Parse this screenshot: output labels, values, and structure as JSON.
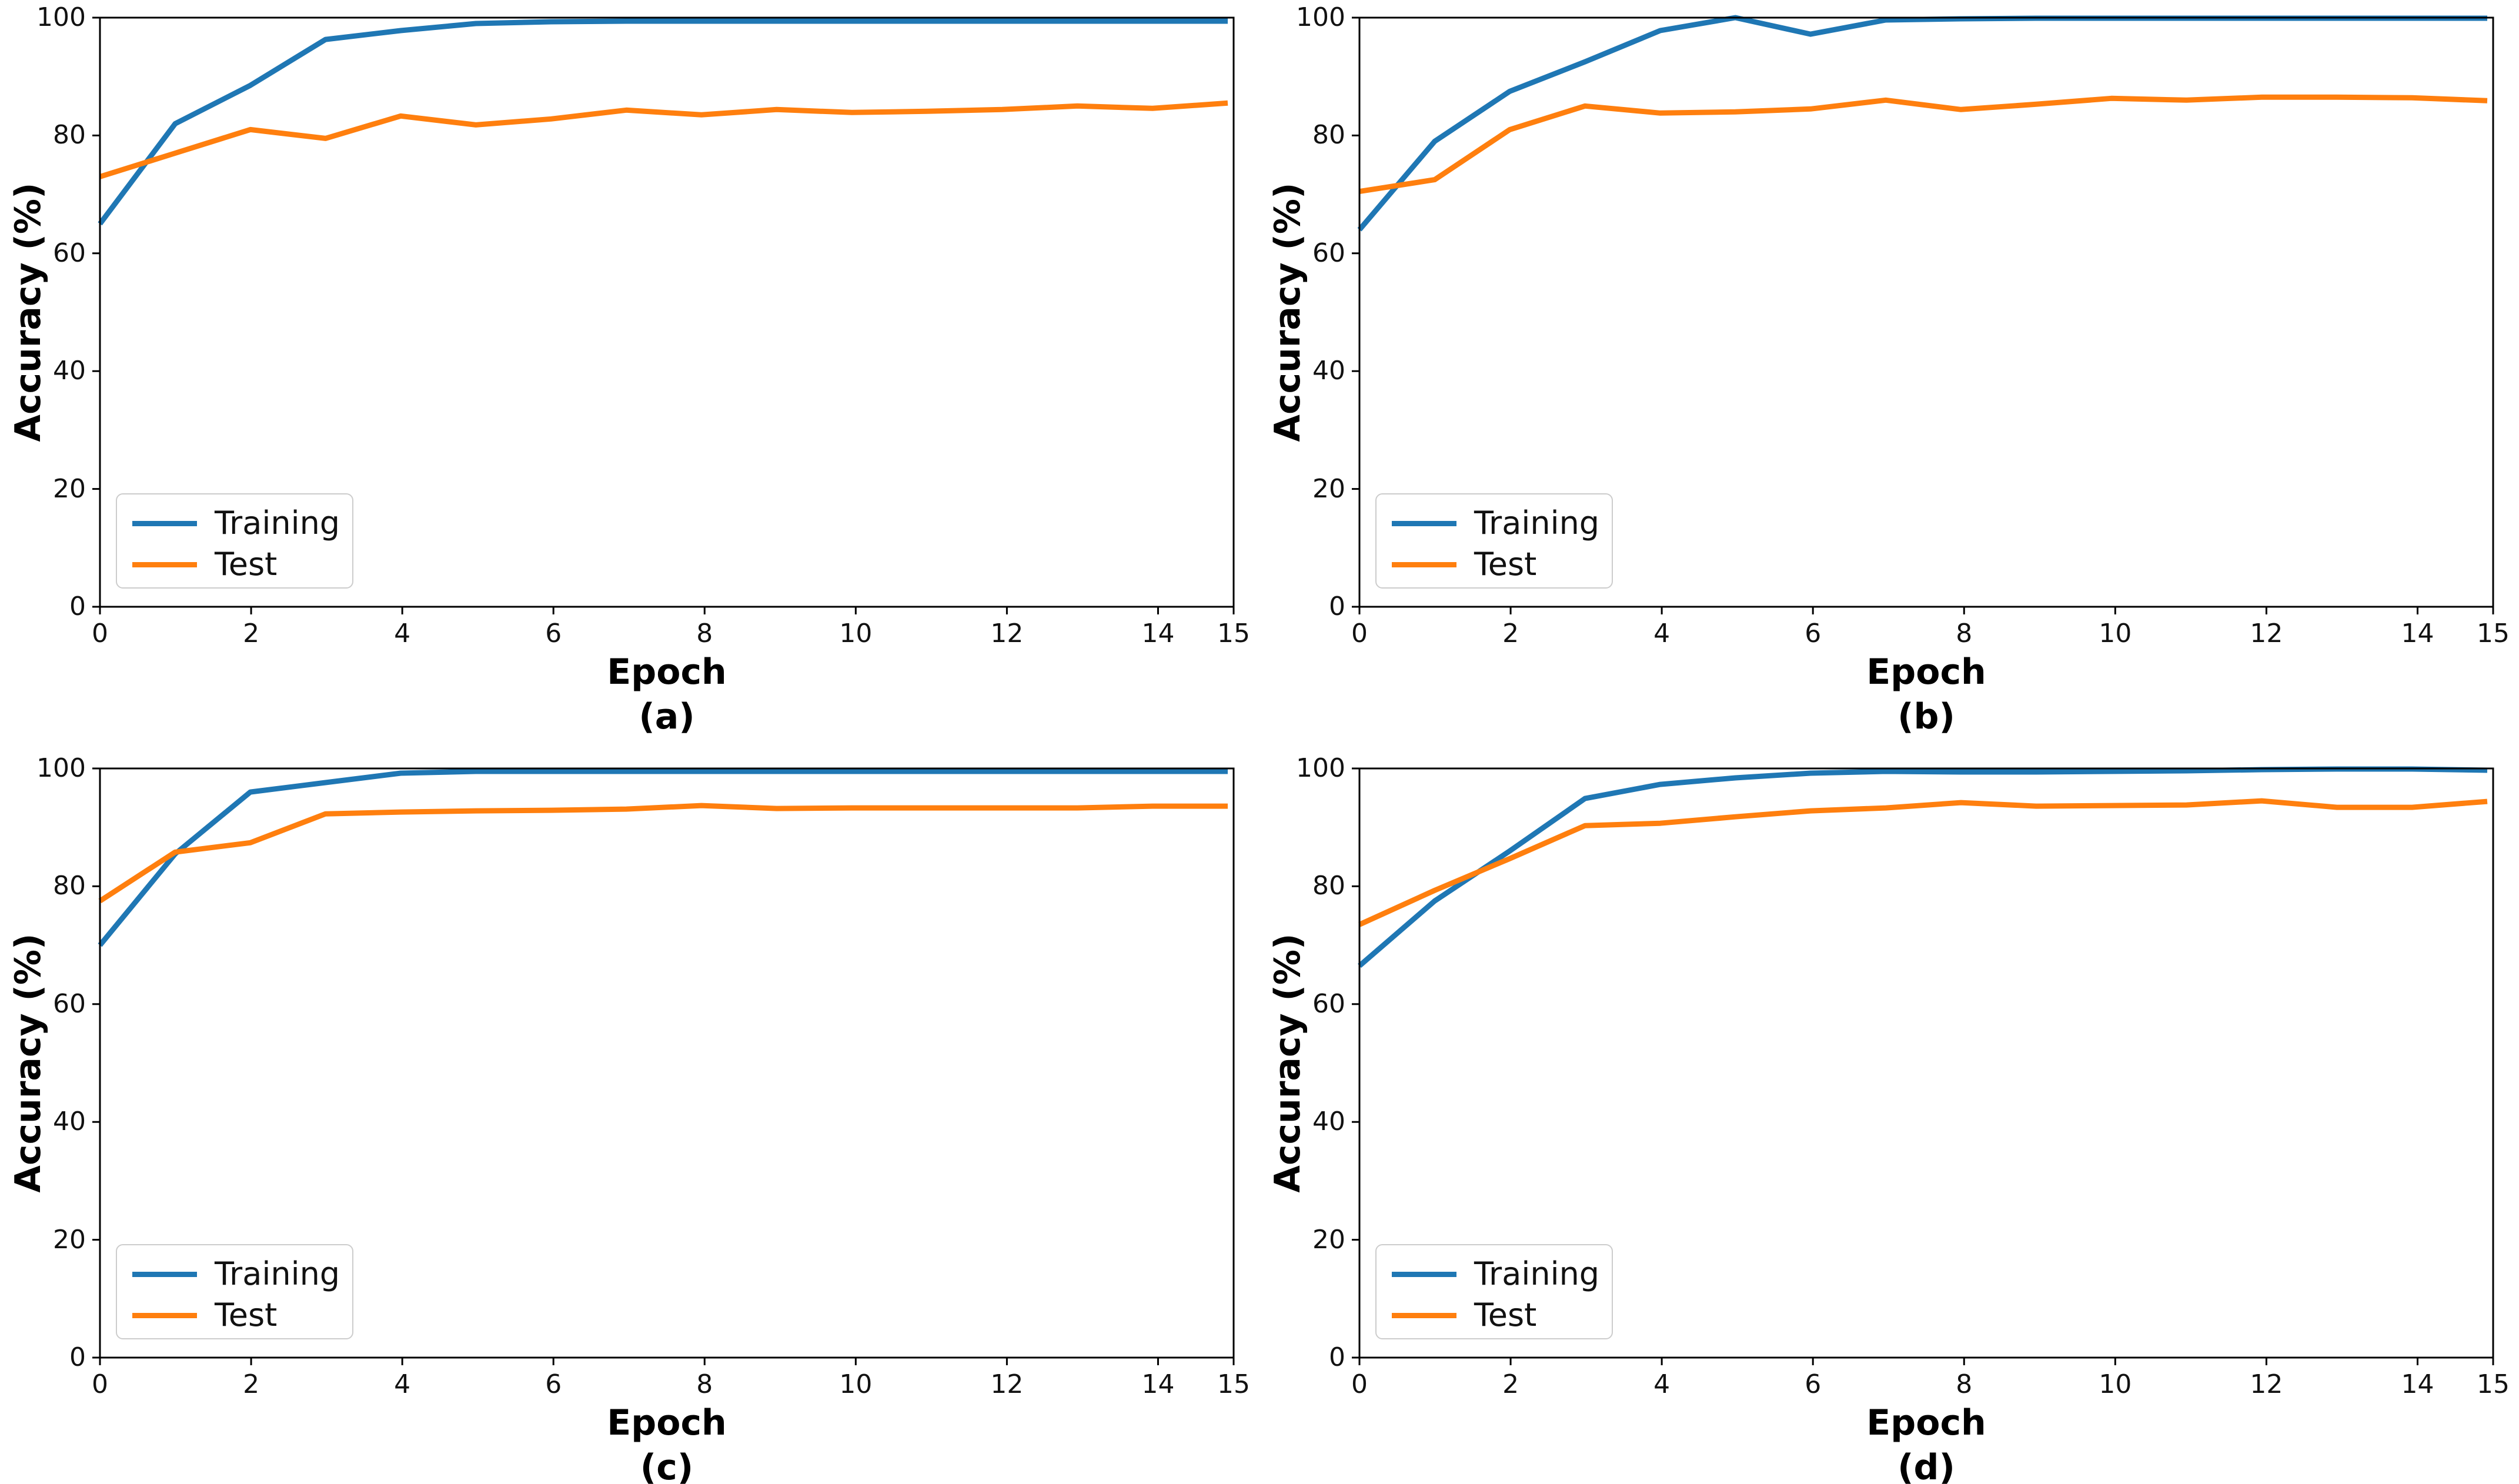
{
  "figure": {
    "background": "#ffffff",
    "rows": 2,
    "cols": 2,
    "spine_color": "#000000",
    "tick_color": "#000000"
  },
  "chart_data": [
    {
      "type": "line",
      "panel_label": "(a)",
      "xlabel": "Epoch",
      "ylabel": "Accuracy (%)",
      "xlim": [
        0,
        15
      ],
      "ylim": [
        0,
        100
      ],
      "xticks": [
        0,
        2,
        4,
        6,
        8,
        10,
        12,
        14,
        15
      ],
      "yticks": [
        0,
        20,
        40,
        60,
        80,
        100
      ],
      "grid": false,
      "legend": {
        "position": "lower-left",
        "entries": [
          "Training",
          "Test"
        ]
      },
      "x": [
        0,
        1,
        2,
        3,
        4,
        5,
        6,
        7,
        8,
        9,
        10,
        11,
        12,
        13,
        14,
        15
      ],
      "series": [
        {
          "name": "Training",
          "color": "#1f77b4",
          "values": [
            65,
            82,
            88.5,
            96.3,
            97.8,
            99.0,
            99.3,
            99.4,
            99.4,
            99.4,
            99.4,
            99.4,
            99.4,
            99.4,
            99.4,
            99.4
          ]
        },
        {
          "name": "Test",
          "color": "#ff7f0e",
          "values": [
            73,
            77,
            81,
            79.5,
            83.3,
            81.8,
            82.8,
            84.3,
            83.5,
            84.4,
            83.9,
            84.1,
            84.4,
            85.0,
            84.6,
            85.5
          ]
        }
      ]
    },
    {
      "type": "line",
      "panel_label": "(b)",
      "xlabel": "Epoch",
      "ylabel": "Accuracy (%)",
      "xlim": [
        0,
        15
      ],
      "ylim": [
        0,
        100
      ],
      "xticks": [
        0,
        2,
        4,
        6,
        8,
        10,
        12,
        14,
        15
      ],
      "yticks": [
        0,
        20,
        40,
        60,
        80,
        100
      ],
      "grid": false,
      "legend": {
        "position": "lower-left",
        "entries": [
          "Training",
          "Test"
        ]
      },
      "x": [
        0,
        1,
        2,
        3,
        4,
        5,
        6,
        7,
        8,
        9,
        10,
        11,
        12,
        13,
        14,
        15
      ],
      "series": [
        {
          "name": "Training",
          "color": "#1f77b4",
          "values": [
            64,
            79,
            87.5,
            92.5,
            97.8,
            100,
            97.2,
            99.6,
            99.8,
            99.9,
            99.9,
            99.9,
            99.9,
            99.9,
            99.9,
            99.9
          ]
        },
        {
          "name": "Test",
          "color": "#ff7f0e",
          "values": [
            70.5,
            72.5,
            81,
            85,
            83.8,
            84,
            84.5,
            86,
            84.4,
            85.3,
            86.3,
            86,
            86.5,
            86.5,
            86.4,
            85.9
          ]
        }
      ]
    },
    {
      "type": "line",
      "panel_label": "(c)",
      "xlabel": "Epoch",
      "ylabel": "Accuracy (%)",
      "xlim": [
        0,
        15
      ],
      "ylim": [
        0,
        100
      ],
      "xticks": [
        0,
        2,
        4,
        6,
        8,
        10,
        12,
        14,
        15
      ],
      "yticks": [
        0,
        20,
        40,
        60,
        80,
        100
      ],
      "grid": false,
      "legend": {
        "position": "lower-left",
        "entries": [
          "Training",
          "Test"
        ]
      },
      "x": [
        0,
        1,
        2,
        3,
        4,
        5,
        6,
        7,
        8,
        9,
        10,
        11,
        12,
        13,
        14,
        15
      ],
      "series": [
        {
          "name": "Training",
          "color": "#1f77b4",
          "values": [
            70,
            85.5,
            96,
            97.6,
            99.2,
            99.5,
            99.5,
            99.5,
            99.5,
            99.5,
            99.5,
            99.5,
            99.5,
            99.5,
            99.5,
            99.5
          ]
        },
        {
          "name": "Test",
          "color": "#ff7f0e",
          "values": [
            77.5,
            85.8,
            87.4,
            92.3,
            92.6,
            92.8,
            92.9,
            93.1,
            93.7,
            93.2,
            93.3,
            93.3,
            93.3,
            93.3,
            93.6,
            93.6
          ]
        }
      ]
    },
    {
      "type": "line",
      "panel_label": "(d)",
      "xlabel": "Epoch",
      "ylabel": "Accuracy (%)",
      "xlim": [
        0,
        15
      ],
      "ylim": [
        0,
        100
      ],
      "xticks": [
        0,
        2,
        4,
        6,
        8,
        10,
        12,
        14,
        15
      ],
      "yticks": [
        0,
        20,
        40,
        60,
        80,
        100
      ],
      "grid": false,
      "legend": {
        "position": "lower-left",
        "entries": [
          "Training",
          "Test"
        ]
      },
      "x": [
        0,
        1,
        2,
        3,
        4,
        5,
        6,
        7,
        8,
        9,
        10,
        11,
        12,
        13,
        14,
        15
      ],
      "series": [
        {
          "name": "Training",
          "color": "#1f77b4",
          "values": [
            66.5,
            77.5,
            86,
            94.9,
            97.3,
            98.4,
            99.2,
            99.5,
            99.4,
            99.4,
            99.5,
            99.6,
            99.8,
            99.9,
            99.9,
            99.7
          ]
        },
        {
          "name": "Test",
          "color": "#ff7f0e",
          "values": [
            73.5,
            79.3,
            84.7,
            90.3,
            90.7,
            91.8,
            92.8,
            93.3,
            94.2,
            93.6,
            93.7,
            93.8,
            94.5,
            93.4,
            93.4,
            94.4
          ]
        }
      ]
    }
  ]
}
